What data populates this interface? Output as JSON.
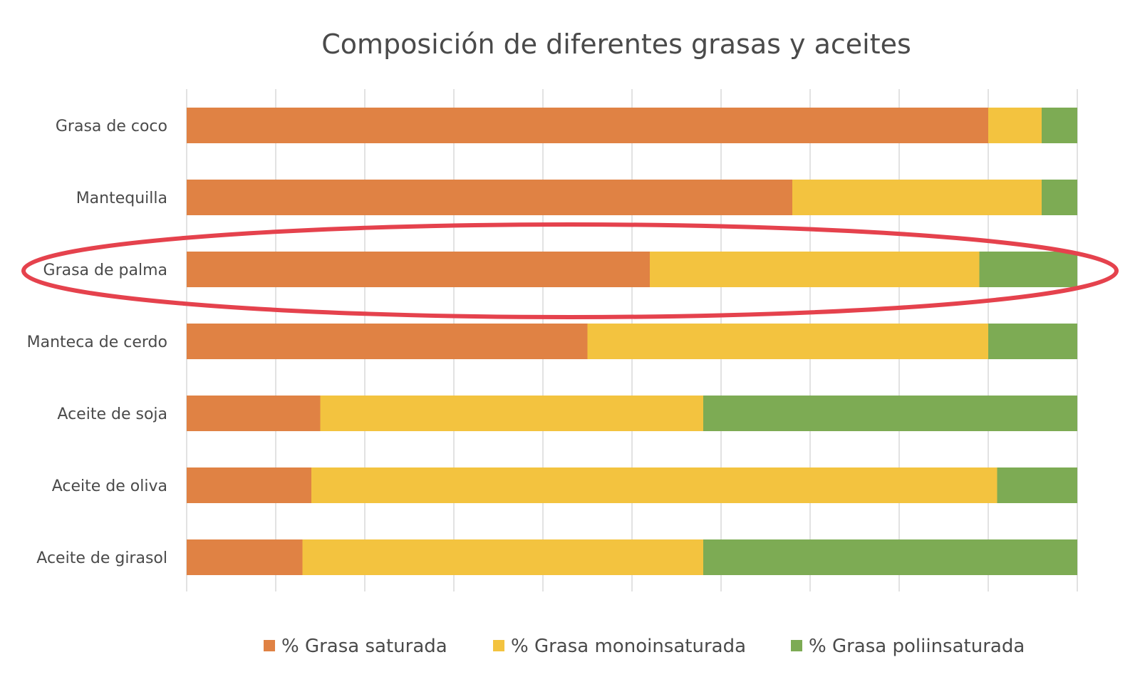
{
  "chart_data": {
    "type": "bar",
    "orientation": "horizontal",
    "stacked": true,
    "percent_stacked": true,
    "title": "Composición de diferentes grasas y aceites",
    "categories": [
      "Grasa de coco",
      "Mantequilla",
      "Grasa de palma",
      "Manteca de cerdo",
      "Aceite de soja",
      "Aceite de oliva",
      "Aceite de girasol"
    ],
    "series": [
      {
        "name": "% Grasa saturada",
        "color": "#e08244",
        "values": [
          90,
          68,
          52,
          45,
          15,
          14,
          13
        ]
      },
      {
        "name": "% Grasa monoinsaturada",
        "color": "#f3c33f",
        "values": [
          6,
          28,
          37,
          45,
          43,
          77,
          45
        ]
      },
      {
        "name": "% Grasa poliinsaturada",
        "color": "#7dab54",
        "values": [
          4,
          4,
          11,
          10,
          42,
          9,
          42
        ]
      }
    ],
    "xlim": [
      0,
      100
    ],
    "grid": true,
    "legend": "bottom",
    "annotation": {
      "type": "ellipse",
      "target": "Grasa de palma",
      "color": "#e5424d"
    }
  }
}
